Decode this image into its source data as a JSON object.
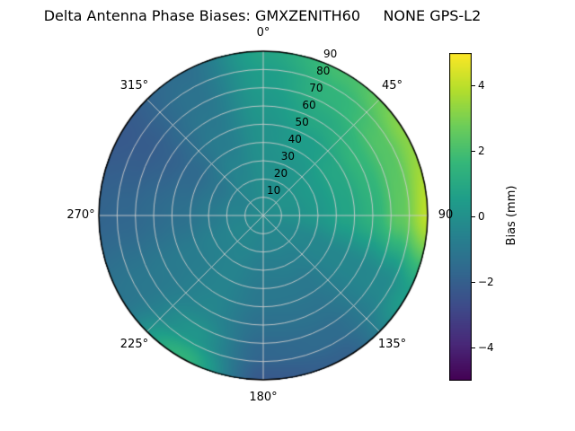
{
  "chart_data": {
    "type": "heatmap",
    "projection": "polar-skyplot",
    "title": "Delta Antenna Phase Biases: GMXZENITH60     NONE GPS-L2",
    "azimuth_ticks": [
      {
        "label": "0°",
        "angle_deg": 0
      },
      {
        "label": "45°",
        "angle_deg": 45
      },
      {
        "label": "90",
        "angle_deg": 90
      },
      {
        "label": "135°",
        "angle_deg": 135
      },
      {
        "label": "180°",
        "angle_deg": 180
      },
      {
        "label": "225°",
        "angle_deg": 225
      },
      {
        "label": "270°",
        "angle_deg": 270
      },
      {
        "label": "315°",
        "angle_deg": 315
      }
    ],
    "radial_ticks": [
      10,
      20,
      30,
      40,
      50,
      60,
      70,
      80,
      90
    ],
    "radial_label_angle_deg": 22.5,
    "radial_axis_range": [
      0,
      90
    ],
    "azimuth_grid_step_deg": 45,
    "grid_on": true,
    "grid_data": {
      "azimuth_deg": [
        0,
        30,
        60,
        90,
        120,
        150,
        180,
        210,
        240,
        270,
        300,
        330,
        360
      ],
      "zenith_deg": [
        0,
        15,
        30,
        45,
        60,
        75,
        90
      ],
      "bias_mm": [
        [
          -0.2,
          -0.2,
          -0.2,
          -0.2,
          -0.2,
          -0.2,
          -0.2,
          -0.2,
          -0.2,
          -0.2,
          -0.2,
          -0.2,
          -0.2
        ],
        [
          -0.1,
          0.0,
          0.1,
          0.0,
          -0.3,
          -0.4,
          -0.5,
          -0.4,
          -0.4,
          -0.5,
          -0.6,
          -0.3,
          -0.1
        ],
        [
          0.0,
          0.2,
          0.4,
          0.3,
          -0.4,
          -0.7,
          -0.8,
          -0.5,
          -0.6,
          -0.9,
          -1.1,
          -0.5,
          0.0
        ],
        [
          0.1,
          0.5,
          0.9,
          0.8,
          -0.4,
          -1.0,
          -1.0,
          -0.5,
          -0.8,
          -1.3,
          -1.6,
          -0.8,
          0.1
        ],
        [
          0.3,
          1.0,
          1.6,
          1.4,
          -0.4,
          -1.2,
          -1.3,
          -0.4,
          -0.9,
          -1.5,
          -1.9,
          -1.0,
          0.3
        ],
        [
          0.5,
          1.5,
          2.3,
          2.5,
          -0.3,
          -1.5,
          -1.7,
          0.2,
          -1.0,
          -1.7,
          -2.1,
          -1.2,
          0.5
        ],
        [
          0.8,
          2.0,
          3.2,
          4.0,
          0.5,
          -1.9,
          -2.2,
          1.5,
          -1.1,
          -1.8,
          -2.2,
          -1.4,
          0.8
        ]
      ]
    },
    "colormap": "viridis",
    "colormap_stops": [
      "#440154",
      "#482878",
      "#3e4a89",
      "#31688e",
      "#26828e",
      "#1f9e89",
      "#35b779",
      "#6dcd59",
      "#b4de2c",
      "#fde725"
    ],
    "clim": [
      -5,
      5
    ],
    "colorbar": {
      "label": "Bias (mm)",
      "ticks": [
        {
          "label": "4",
          "value": 4
        },
        {
          "label": "2",
          "value": 2
        },
        {
          "label": "0",
          "value": 0
        },
        {
          "label": "−2",
          "value": -2
        },
        {
          "label": "−4",
          "value": -4
        }
      ]
    }
  }
}
